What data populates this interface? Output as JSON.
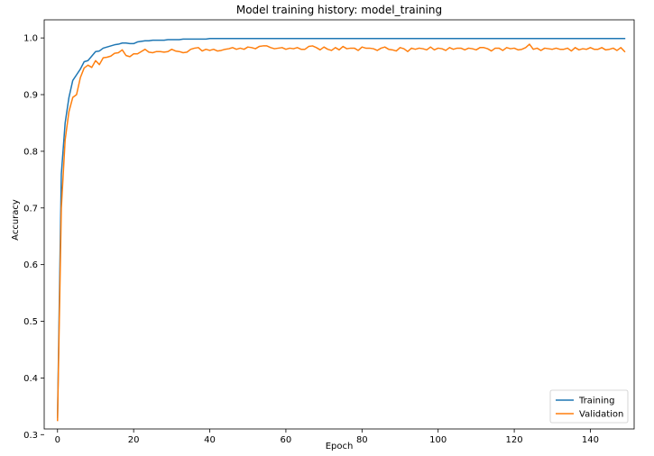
{
  "chart_data": {
    "type": "line",
    "title": "Model training history: model_training",
    "xlabel": "Epoch",
    "ylabel": "Accuracy",
    "xlim": [
      -3.5,
      151.5
    ],
    "ylim": [
      0.31,
      1.032
    ],
    "xticks": [
      0,
      20,
      40,
      60,
      80,
      100,
      120,
      140
    ],
    "yticks": [
      0.3,
      0.4,
      0.5,
      0.6,
      0.7,
      0.8,
      0.9,
      1.0
    ],
    "xtick_labels": [
      "0",
      "20",
      "40",
      "60",
      "80",
      "100",
      "120",
      "140"
    ],
    "ytick_labels": [
      "0.3",
      "0.4",
      "0.5",
      "0.6",
      "0.7",
      "0.8",
      "0.9",
      "1.0"
    ],
    "grid": false,
    "legend_position": "lower-right",
    "series": [
      {
        "name": "Training",
        "color": "#1f77b4",
        "x": [
          0,
          1,
          2,
          3,
          4,
          5,
          6,
          7,
          8,
          9,
          10,
          11,
          12,
          13,
          14,
          15,
          16,
          17,
          18,
          19,
          20,
          21,
          22,
          23,
          24,
          25,
          26,
          27,
          28,
          29,
          30,
          31,
          32,
          33,
          34,
          35,
          36,
          37,
          38,
          39,
          40,
          41,
          42,
          43,
          44,
          45,
          46,
          47,
          48,
          49,
          50,
          51,
          52,
          53,
          54,
          55,
          56,
          57,
          58,
          59,
          60,
          61,
          62,
          63,
          64,
          65,
          66,
          67,
          68,
          69,
          70,
          71,
          72,
          73,
          74,
          75,
          76,
          77,
          78,
          79,
          80,
          81,
          82,
          83,
          84,
          85,
          86,
          87,
          88,
          89,
          90,
          91,
          92,
          93,
          94,
          95,
          96,
          97,
          98,
          99,
          100,
          101,
          102,
          103,
          104,
          105,
          106,
          107,
          108,
          109,
          110,
          111,
          112,
          113,
          114,
          115,
          116,
          117,
          118,
          119,
          120,
          121,
          122,
          123,
          124,
          125,
          126,
          127,
          128,
          129,
          130,
          131,
          132,
          133,
          134,
          135,
          136,
          137,
          138,
          139,
          140,
          141,
          142,
          143,
          144,
          145,
          146,
          147,
          148,
          149
        ],
        "y": [
          0.33,
          0.76,
          0.85,
          0.895,
          0.925,
          0.935,
          0.945,
          0.958,
          0.96,
          0.968,
          0.976,
          0.977,
          0.982,
          0.984,
          0.986,
          0.988,
          0.989,
          0.991,
          0.991,
          0.99,
          0.99,
          0.993,
          0.994,
          0.995,
          0.995,
          0.996,
          0.996,
          0.996,
          0.996,
          0.997,
          0.997,
          0.997,
          0.997,
          0.998,
          0.998,
          0.998,
          0.998,
          0.998,
          0.998,
          0.998,
          0.999,
          0.999,
          0.999,
          0.999,
          0.999,
          0.999,
          0.999,
          0.999,
          0.999,
          0.999,
          0.999,
          0.999,
          0.999,
          0.999,
          0.999,
          0.999,
          0.999,
          0.999,
          0.999,
          0.999,
          0.999,
          0.999,
          0.999,
          0.999,
          0.999,
          0.999,
          0.999,
          0.999,
          0.999,
          0.999,
          0.999,
          0.999,
          0.999,
          0.999,
          0.999,
          0.999,
          0.999,
          0.999,
          0.999,
          0.999,
          0.999,
          0.999,
          0.999,
          0.999,
          0.999,
          0.999,
          0.999,
          0.999,
          0.999,
          0.999,
          0.999,
          0.999,
          0.999,
          0.999,
          0.999,
          0.999,
          0.999,
          0.999,
          0.999,
          0.999,
          0.999,
          0.999,
          0.999,
          0.999,
          0.999,
          0.999,
          0.999,
          0.999,
          0.999,
          0.999,
          0.999,
          0.999,
          0.999,
          0.999,
          0.999,
          0.999,
          0.999,
          0.999,
          0.999,
          0.999,
          0.999,
          0.999,
          0.999,
          0.999,
          0.999,
          0.999,
          0.999,
          0.999,
          0.999,
          0.999,
          0.999,
          0.999,
          0.999,
          0.999,
          0.999,
          0.999,
          0.999,
          0.999,
          0.999,
          0.999,
          0.999,
          0.999,
          0.999,
          0.999,
          0.999,
          0.999,
          0.999,
          0.999,
          0.999,
          0.999
        ]
      },
      {
        "name": "Validation",
        "color": "#ff7f0e",
        "x": [
          0,
          1,
          2,
          3,
          4,
          5,
          6,
          7,
          8,
          9,
          10,
          11,
          12,
          13,
          14,
          15,
          16,
          17,
          18,
          19,
          20,
          21,
          22,
          23,
          24,
          25,
          26,
          27,
          28,
          29,
          30,
          31,
          32,
          33,
          34,
          35,
          36,
          37,
          38,
          39,
          40,
          41,
          42,
          43,
          44,
          45,
          46,
          47,
          48,
          49,
          50,
          51,
          52,
          53,
          54,
          55,
          56,
          57,
          58,
          59,
          60,
          61,
          62,
          63,
          64,
          65,
          66,
          67,
          68,
          69,
          70,
          71,
          72,
          73,
          74,
          75,
          76,
          77,
          78,
          79,
          80,
          81,
          82,
          83,
          84,
          85,
          86,
          87,
          88,
          89,
          90,
          91,
          92,
          93,
          94,
          95,
          96,
          97,
          98,
          99,
          100,
          101,
          102,
          103,
          104,
          105,
          106,
          107,
          108,
          109,
          110,
          111,
          112,
          113,
          114,
          115,
          116,
          117,
          118,
          119,
          120,
          121,
          122,
          123,
          124,
          125,
          126,
          127,
          128,
          129,
          130,
          131,
          132,
          133,
          134,
          135,
          136,
          137,
          138,
          139,
          140,
          141,
          142,
          143,
          144,
          145,
          146,
          147,
          148,
          149
        ],
        "y": [
          0.325,
          0.7,
          0.82,
          0.87,
          0.895,
          0.9,
          0.93,
          0.947,
          0.952,
          0.948,
          0.96,
          0.953,
          0.965,
          0.966,
          0.968,
          0.973,
          0.974,
          0.979,
          0.969,
          0.967,
          0.972,
          0.972,
          0.976,
          0.98,
          0.975,
          0.974,
          0.976,
          0.976,
          0.975,
          0.976,
          0.98,
          0.977,
          0.976,
          0.974,
          0.975,
          0.98,
          0.982,
          0.983,
          0.977,
          0.98,
          0.978,
          0.98,
          0.977,
          0.978,
          0.98,
          0.981,
          0.983,
          0.98,
          0.982,
          0.98,
          0.984,
          0.983,
          0.981,
          0.985,
          0.986,
          0.986,
          0.983,
          0.981,
          0.982,
          0.983,
          0.98,
          0.982,
          0.981,
          0.983,
          0.98,
          0.98,
          0.985,
          0.986,
          0.983,
          0.979,
          0.984,
          0.98,
          0.978,
          0.983,
          0.979,
          0.985,
          0.981,
          0.982,
          0.982,
          0.978,
          0.984,
          0.982,
          0.982,
          0.981,
          0.978,
          0.982,
          0.984,
          0.98,
          0.979,
          0.977,
          0.983,
          0.981,
          0.976,
          0.982,
          0.98,
          0.982,
          0.981,
          0.979,
          0.984,
          0.979,
          0.982,
          0.981,
          0.978,
          0.983,
          0.98,
          0.982,
          0.982,
          0.979,
          0.982,
          0.981,
          0.979,
          0.983,
          0.983,
          0.981,
          0.977,
          0.982,
          0.982,
          0.978,
          0.983,
          0.981,
          0.982,
          0.979,
          0.98,
          0.983,
          0.989,
          0.98,
          0.982,
          0.978,
          0.982,
          0.981,
          0.98,
          0.982,
          0.98,
          0.98,
          0.982,
          0.977,
          0.983,
          0.979,
          0.981,
          0.98,
          0.983,
          0.98,
          0.98,
          0.983,
          0.979,
          0.98,
          0.982,
          0.978,
          0.983,
          0.976
        ]
      }
    ]
  }
}
